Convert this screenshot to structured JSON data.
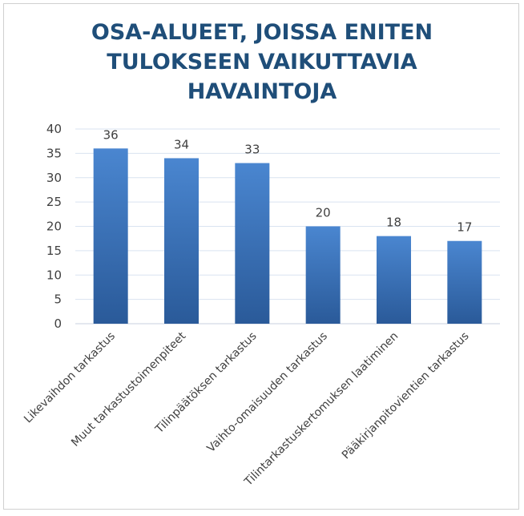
{
  "chart_data": {
    "type": "bar",
    "title_lines": [
      "OSA-ALUEET, JOISSA ENITEN",
      "TULOKSEEN VAIKUTTAVIA",
      "HAVAINTOJA"
    ],
    "categories": [
      "Likevaihdon tarkastus",
      "Muut tarkastustoimenpiteet",
      "Tilinpäätöksen tarkastus",
      "Vaihto-omaisuuden tarkastus",
      "Tilintarkastuskertomuksen laatiminen",
      "Pääkirjanpitovientien tarkastus"
    ],
    "values": [
      36,
      34,
      33,
      20,
      18,
      17
    ],
    "ylim": [
      0,
      40
    ],
    "yticks": [
      0,
      5,
      10,
      15,
      20,
      25,
      30,
      35,
      40
    ],
    "grid": true,
    "legend": "none",
    "colors": {
      "bar_top": "#4a86d0",
      "bar_bottom": "#2a5a99",
      "title": "#1f4e79",
      "grid": "#d9e3f0",
      "text": "#404040"
    }
  }
}
